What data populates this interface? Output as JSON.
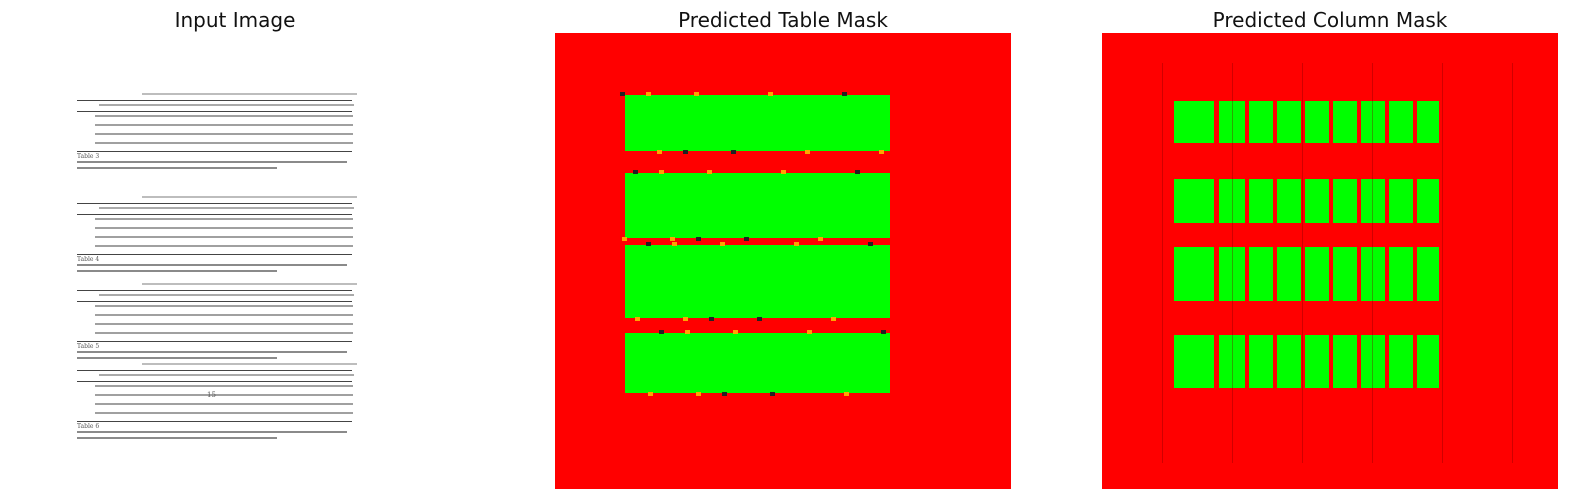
{
  "panels": [
    {
      "title": "Input Image"
    },
    {
      "title": "Predicted Table Mask"
    },
    {
      "title": "Predicted Column Mask"
    }
  ],
  "input_document": {
    "page_number": "15",
    "captions": [
      "Table 3",
      "Table 4",
      "Table 5",
      "Table 6"
    ]
  },
  "colors": {
    "mask_background": "#ff0000",
    "mask_foreground": "#00ff00",
    "page_background": "#ffffff"
  }
}
